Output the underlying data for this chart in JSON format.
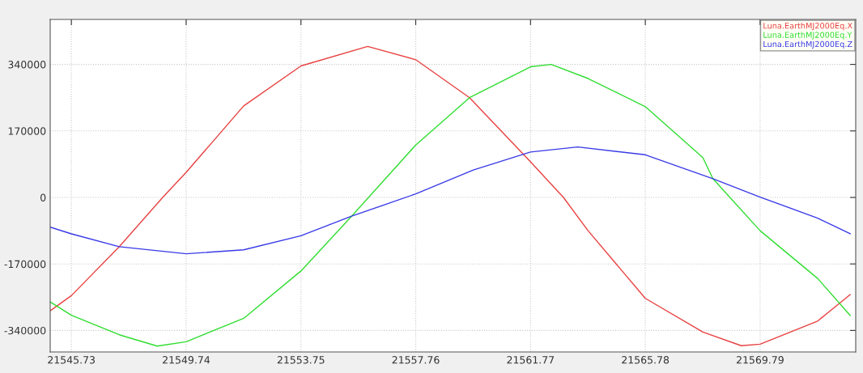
{
  "chart_data": {
    "type": "line",
    "xlim": [
      21544.99,
      21573.13
    ],
    "ylim": [
      -395000,
      455000
    ],
    "xticks": [
      {
        "value": 21545.73,
        "label": "21545.73"
      },
      {
        "value": 21549.74,
        "label": "21549.74"
      },
      {
        "value": 21553.75,
        "label": "21553.75"
      },
      {
        "value": 21557.76,
        "label": "21557.76"
      },
      {
        "value": 21561.77,
        "label": "21561.77"
      },
      {
        "value": 21565.78,
        "label": "21565.78"
      },
      {
        "value": 21569.79,
        "label": "21569.79"
      }
    ],
    "yticks": [
      340000,
      170000,
      0,
      -170000,
      -340000
    ],
    "grid": true,
    "legend": "top right",
    "marker": "none",
    "line_style": "solid",
    "series": [
      {
        "name": "Luna.EarthMJ2000Eq.X",
        "color": "#e84040",
        "x": [
          21544.99,
          21545.73,
          21547.4,
          21548.92,
          21549.74,
          21551.75,
          21553.75,
          21556.08,
          21557.76,
          21559.64,
          21561.77,
          21562.92,
          21563.78,
          21565.78,
          21567.79,
          21569.13,
          21569.79,
          21571.8,
          21572.94
        ],
        "values": [
          -290000,
          -251000,
          -126000,
          0,
          64000,
          234000,
          336000,
          386000,
          352000,
          255000,
          91000,
          0,
          -85000,
          -258000,
          -344000,
          -379000,
          -375000,
          -316000,
          -248000
        ]
      },
      {
        "name": "Luna.EarthMJ2000Eq.Y",
        "color": "#30dd30",
        "x": [
          21544.99,
          21545.73,
          21547.4,
          21548.73,
          21549.74,
          21551.75,
          21553.75,
          21555.52,
          21557.76,
          21559.64,
          21561.77,
          21562.49,
          21563.78,
          21565.78,
          21567.79,
          21568.14,
          21569.79,
          21571.8,
          21572.94
        ],
        "values": [
          -267000,
          -301000,
          -351000,
          -380000,
          -369000,
          -309000,
          -188000,
          -48000,
          134000,
          255000,
          334000,
          340000,
          304000,
          232000,
          102000,
          48000,
          -85000,
          -207000,
          -302000
        ]
      },
      {
        "name": "Luna.EarthMJ2000Eq.Z",
        "color": "#3a3ae8",
        "x": [
          21544.99,
          21545.73,
          21547.4,
          21549.74,
          21551.75,
          21553.75,
          21555.52,
          21557.76,
          21559.77,
          21561.77,
          21563.42,
          21565.78,
          21568.14,
          21569.79,
          21571.8,
          21572.94
        ],
        "values": [
          -76000,
          -93000,
          -126000,
          -144000,
          -134000,
          -98000,
          -48000,
          9000,
          70000,
          116000,
          129000,
          109000,
          48000,
          1000,
          -53000,
          -93000
        ]
      }
    ]
  }
}
